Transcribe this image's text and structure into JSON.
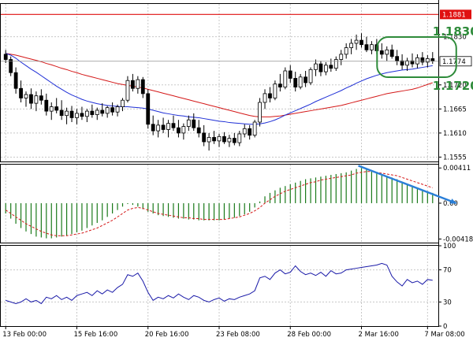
{
  "chart_data": [
    {
      "type": "candlestick",
      "panel": "price",
      "price_scale": {
        "ymin": 1.1545,
        "ymax": 1.1905,
        "ticks": [
          "1.1830",
          "1.1720",
          "1.1665",
          "1.1610",
          "1.1555"
        ],
        "tick_values": [
          1.183,
          1.172,
          1.1665,
          1.161,
          1.1555
        ]
      },
      "resistance_level": {
        "value": 1.1881,
        "label": "1.1881",
        "color": "#e01010"
      },
      "current_price": {
        "value": 1.1774,
        "label": "1.1774"
      },
      "annotations": [
        {
          "text": "1.1830",
          "color": "#2e8b3a"
        },
        {
          "text": "1.1720",
          "color": "#2e8b3a"
        }
      ],
      "highlight_box": {
        "color": "#2e8b3a",
        "from_candle": 74,
        "to_candle": 98
      },
      "candles": [
        {
          "o": 1.179,
          "h": 1.18,
          "l": 1.177,
          "c": 1.1778
        },
        {
          "o": 1.1778,
          "h": 1.1785,
          "l": 1.174,
          "c": 1.1748
        },
        {
          "o": 1.1748,
          "h": 1.176,
          "l": 1.17,
          "c": 1.1712
        },
        {
          "o": 1.1712,
          "h": 1.173,
          "l": 1.168,
          "c": 1.169
        },
        {
          "o": 1.169,
          "h": 1.1705,
          "l": 1.167,
          "c": 1.1698
        },
        {
          "o": 1.1698,
          "h": 1.1712,
          "l": 1.1665,
          "c": 1.1678
        },
        {
          "o": 1.1678,
          "h": 1.1705,
          "l": 1.166,
          "c": 1.1695
        },
        {
          "o": 1.1695,
          "h": 1.171,
          "l": 1.1675,
          "c": 1.1685
        },
        {
          "o": 1.1685,
          "h": 1.17,
          "l": 1.165,
          "c": 1.166
        },
        {
          "o": 1.166,
          "h": 1.168,
          "l": 1.164,
          "c": 1.167
        },
        {
          "o": 1.167,
          "h": 1.169,
          "l": 1.1655,
          "c": 1.1662
        },
        {
          "o": 1.1662,
          "h": 1.1685,
          "l": 1.164,
          "c": 1.165
        },
        {
          "o": 1.165,
          "h": 1.1668,
          "l": 1.163,
          "c": 1.166
        },
        {
          "o": 1.166,
          "h": 1.1672,
          "l": 1.1635,
          "c": 1.1645
        },
        {
          "o": 1.1645,
          "h": 1.1665,
          "l": 1.163,
          "c": 1.1655
        },
        {
          "o": 1.1655,
          "h": 1.167,
          "l": 1.164,
          "c": 1.1648
        },
        {
          "o": 1.1648,
          "h": 1.1665,
          "l": 1.1635,
          "c": 1.166
        },
        {
          "o": 1.166,
          "h": 1.1675,
          "l": 1.1645,
          "c": 1.1652
        },
        {
          "o": 1.1652,
          "h": 1.1668,
          "l": 1.164,
          "c": 1.1662
        },
        {
          "o": 1.1662,
          "h": 1.1678,
          "l": 1.1648,
          "c": 1.1655
        },
        {
          "o": 1.1655,
          "h": 1.1672,
          "l": 1.1645,
          "c": 1.1668
        },
        {
          "o": 1.1668,
          "h": 1.168,
          "l": 1.165,
          "c": 1.1658
        },
        {
          "o": 1.1658,
          "h": 1.1675,
          "l": 1.1648,
          "c": 1.167
        },
        {
          "o": 1.167,
          "h": 1.169,
          "l": 1.166,
          "c": 1.1685
        },
        {
          "o": 1.1685,
          "h": 1.174,
          "l": 1.168,
          "c": 1.173
        },
        {
          "o": 1.173,
          "h": 1.1745,
          "l": 1.1705,
          "c": 1.1712
        },
        {
          "o": 1.1712,
          "h": 1.174,
          "l": 1.17,
          "c": 1.1732
        },
        {
          "o": 1.1732,
          "h": 1.1738,
          "l": 1.169,
          "c": 1.17
        },
        {
          "o": 1.17,
          "h": 1.171,
          "l": 1.162,
          "c": 1.163
        },
        {
          "o": 1.163,
          "h": 1.165,
          "l": 1.1605,
          "c": 1.1615
        },
        {
          "o": 1.1615,
          "h": 1.164,
          "l": 1.16,
          "c": 1.1628
        },
        {
          "o": 1.1628,
          "h": 1.1645,
          "l": 1.161,
          "c": 1.1618
        },
        {
          "o": 1.1618,
          "h": 1.164,
          "l": 1.16,
          "c": 1.1632
        },
        {
          "o": 1.1632,
          "h": 1.165,
          "l": 1.1615,
          "c": 1.1622
        },
        {
          "o": 1.1622,
          "h": 1.164,
          "l": 1.16,
          "c": 1.161
        },
        {
          "o": 1.161,
          "h": 1.1632,
          "l": 1.1595,
          "c": 1.1625
        },
        {
          "o": 1.1625,
          "h": 1.165,
          "l": 1.1615,
          "c": 1.164
        },
        {
          "o": 1.164,
          "h": 1.1655,
          "l": 1.1615,
          "c": 1.1622
        },
        {
          "o": 1.1622,
          "h": 1.164,
          "l": 1.16,
          "c": 1.161
        },
        {
          "o": 1.161,
          "h": 1.1628,
          "l": 1.158,
          "c": 1.159
        },
        {
          "o": 1.159,
          "h": 1.161,
          "l": 1.157,
          "c": 1.16
        },
        {
          "o": 1.16,
          "h": 1.1615,
          "l": 1.1585,
          "c": 1.1592
        },
        {
          "o": 1.1592,
          "h": 1.1608,
          "l": 1.1578,
          "c": 1.1602
        },
        {
          "o": 1.1602,
          "h": 1.1612,
          "l": 1.1585,
          "c": 1.159
        },
        {
          "o": 1.159,
          "h": 1.1606,
          "l": 1.1578,
          "c": 1.1598
        },
        {
          "o": 1.1598,
          "h": 1.161,
          "l": 1.1582,
          "c": 1.1588
        },
        {
          "o": 1.1588,
          "h": 1.1615,
          "l": 1.158,
          "c": 1.1608
        },
        {
          "o": 1.1608,
          "h": 1.163,
          "l": 1.16,
          "c": 1.162
        },
        {
          "o": 1.162,
          "h": 1.1628,
          "l": 1.1595,
          "c": 1.1605
        },
        {
          "o": 1.1605,
          "h": 1.164,
          "l": 1.16,
          "c": 1.1635
        },
        {
          "o": 1.1635,
          "h": 1.169,
          "l": 1.1625,
          "c": 1.168
        },
        {
          "o": 1.168,
          "h": 1.171,
          "l": 1.1665,
          "c": 1.17
        },
        {
          "o": 1.17,
          "h": 1.1715,
          "l": 1.168,
          "c": 1.169
        },
        {
          "o": 1.169,
          "h": 1.173,
          "l": 1.1685,
          "c": 1.1722
        },
        {
          "o": 1.1722,
          "h": 1.1745,
          "l": 1.1705,
          "c": 1.1715
        },
        {
          "o": 1.1715,
          "h": 1.176,
          "l": 1.171,
          "c": 1.1752
        },
        {
          "o": 1.1752,
          "h": 1.1765,
          "l": 1.1725,
          "c": 1.1735
        },
        {
          "o": 1.1735,
          "h": 1.175,
          "l": 1.1705,
          "c": 1.1715
        },
        {
          "o": 1.1715,
          "h": 1.1745,
          "l": 1.171,
          "c": 1.1738
        },
        {
          "o": 1.1738,
          "h": 1.1752,
          "l": 1.1715,
          "c": 1.1725
        },
        {
          "o": 1.1725,
          "h": 1.176,
          "l": 1.172,
          "c": 1.1755
        },
        {
          "o": 1.1755,
          "h": 1.1778,
          "l": 1.174,
          "c": 1.1768
        },
        {
          "o": 1.1768,
          "h": 1.1775,
          "l": 1.174,
          "c": 1.175
        },
        {
          "o": 1.175,
          "h": 1.1772,
          "l": 1.1742,
          "c": 1.1765
        },
        {
          "o": 1.1765,
          "h": 1.178,
          "l": 1.175,
          "c": 1.1758
        },
        {
          "o": 1.1758,
          "h": 1.1785,
          "l": 1.1752,
          "c": 1.1778
        },
        {
          "o": 1.1778,
          "h": 1.18,
          "l": 1.1765,
          "c": 1.179
        },
        {
          "o": 1.179,
          "h": 1.1815,
          "l": 1.178,
          "c": 1.1805
        },
        {
          "o": 1.1805,
          "h": 1.1825,
          "l": 1.179,
          "c": 1.1815
        },
        {
          "o": 1.1815,
          "h": 1.1835,
          "l": 1.18,
          "c": 1.1822
        },
        {
          "o": 1.1822,
          "h": 1.1838,
          "l": 1.1805,
          "c": 1.1812
        },
        {
          "o": 1.1812,
          "h": 1.183,
          "l": 1.1795,
          "c": 1.18
        },
        {
          "o": 1.18,
          "h": 1.182,
          "l": 1.179,
          "c": 1.1812
        },
        {
          "o": 1.1812,
          "h": 1.1825,
          "l": 1.179,
          "c": 1.1798
        },
        {
          "o": 1.1798,
          "h": 1.1815,
          "l": 1.178,
          "c": 1.179
        },
        {
          "o": 1.179,
          "h": 1.1808,
          "l": 1.1775,
          "c": 1.18
        },
        {
          "o": 1.18,
          "h": 1.1812,
          "l": 1.178,
          "c": 1.1785
        },
        {
          "o": 1.1785,
          "h": 1.18,
          "l": 1.1765,
          "c": 1.1775
        },
        {
          "o": 1.1775,
          "h": 1.179,
          "l": 1.1755,
          "c": 1.1765
        },
        {
          "o": 1.1765,
          "h": 1.1782,
          "l": 1.1752,
          "c": 1.1775
        },
        {
          "o": 1.1775,
          "h": 1.1792,
          "l": 1.176,
          "c": 1.1768
        },
        {
          "o": 1.1768,
          "h": 1.179,
          "l": 1.1758,
          "c": 1.1782
        },
        {
          "o": 1.1782,
          "h": 1.1795,
          "l": 1.1765,
          "c": 1.1772
        },
        {
          "o": 1.1772,
          "h": 1.1788,
          "l": 1.176,
          "c": 1.178
        },
        {
          "o": 1.178,
          "h": 1.1795,
          "l": 1.1768,
          "c": 1.1775
        }
      ],
      "ma_fast": {
        "name": "",
        "color": "#1f2fd6",
        "values": [
          1.1792,
          1.1788,
          1.1781,
          1.1772,
          1.1764,
          1.1756,
          1.1749,
          1.1741,
          1.1733,
          1.1725,
          1.1717,
          1.171,
          1.1703,
          1.1697,
          1.1692,
          1.1687,
          1.1683,
          1.168,
          1.1677,
          1.1675,
          1.1673,
          1.1672,
          1.1671,
          1.167,
          1.167,
          1.1669,
          1.1668,
          1.1667,
          1.1665,
          1.1662,
          1.1659,
          1.1656,
          1.1654,
          1.1652,
          1.165,
          1.1649,
          1.1647,
          1.1646,
          1.1645,
          1.1643,
          1.1641,
          1.1639,
          1.1637,
          1.1636,
          1.1634,
          1.1633,
          1.1632,
          1.1631,
          1.163,
          1.163,
          1.1631,
          1.1633,
          1.1636,
          1.164,
          1.1645,
          1.1651,
          1.1656,
          1.1661,
          1.1666,
          1.1671,
          1.1676,
          1.1682,
          1.1687,
          1.1692,
          1.1697,
          1.1702,
          1.1707,
          1.1713,
          1.1718,
          1.1724,
          1.1729,
          1.1734,
          1.1738,
          1.1742,
          1.1745,
          1.1748,
          1.175,
          1.1752,
          1.1754,
          1.1755,
          1.1756,
          1.1758,
          1.176,
          1.1762,
          1.1764
        ]
      },
      "ma_slow": {
        "name": "",
        "color": "#d41818",
        "values": [
          1.1792,
          1.179,
          1.1788,
          1.1785,
          1.1782,
          1.1779,
          1.1776,
          1.1773,
          1.1769,
          1.1766,
          1.1762,
          1.1758,
          1.1755,
          1.1751,
          1.1748,
          1.1744,
          1.1741,
          1.1738,
          1.1735,
          1.1732,
          1.1729,
          1.1726,
          1.1723,
          1.1721,
          1.1719,
          1.1717,
          1.1715,
          1.1713,
          1.171,
          1.1707,
          1.1704,
          1.1701,
          1.1698,
          1.1695,
          1.1692,
          1.1689,
          1.1686,
          1.1683,
          1.168,
          1.1677,
          1.1674,
          1.1671,
          1.1668,
          1.1665,
          1.1662,
          1.1659,
          1.1656,
          1.1653,
          1.165,
          1.1648,
          1.1647,
          1.1647,
          1.1647,
          1.1648,
          1.1649,
          1.1651,
          1.1653,
          1.1655,
          1.1657,
          1.1659,
          1.1661,
          1.1663,
          1.1665,
          1.1667,
          1.1669,
          1.1671,
          1.1673,
          1.1676,
          1.1679,
          1.1682,
          1.1685,
          1.1688,
          1.1691,
          1.1694,
          1.1697,
          1.17,
          1.1702,
          1.1704,
          1.1706,
          1.1708,
          1.171,
          1.1713,
          1.1717,
          1.1721,
          1.1725
        ]
      }
    },
    {
      "type": "histogram",
      "panel": "oscillator",
      "ymin": -0.0046,
      "ymax": 0.0045,
      "ticks": [
        "0.00411",
        "0.00",
        "-0.00418"
      ],
      "tick_values": [
        0.00411,
        0.0,
        -0.00418
      ],
      "bar_color": "#1a7a1a",
      "signal_color": "#d41818",
      "arrow_color": "#2a7fd8",
      "values": [
        -0.0012,
        -0.0018,
        -0.0024,
        -0.0029,
        -0.0033,
        -0.0036,
        -0.0039,
        -0.004,
        -0.0041,
        -0.0041,
        -0.004,
        -0.0039,
        -0.0038,
        -0.0036,
        -0.0034,
        -0.0032,
        -0.0029,
        -0.0026,
        -0.0023,
        -0.002,
        -0.0016,
        -0.0012,
        -0.0008,
        -0.0004,
        -0.0001,
        -0.0002,
        -0.0004,
        -0.0007,
        -0.001,
        -0.0012,
        -0.0014,
        -0.0015,
        -0.0016,
        -0.0017,
        -0.0018,
        -0.0018,
        -0.0019,
        -0.0019,
        -0.002,
        -0.002,
        -0.002,
        -0.002,
        -0.002,
        -0.0019,
        -0.0018,
        -0.0017,
        -0.0015,
        -0.0013,
        -0.001,
        -0.0005,
        0.0002,
        0.0008,
        0.0012,
        0.0015,
        0.0018,
        0.002,
        0.0022,
        0.0024,
        0.0026,
        0.0028,
        0.0029,
        0.003,
        0.0031,
        0.0032,
        0.0033,
        0.0034,
        0.0035,
        0.0036,
        0.0038,
        0.004,
        0.0041,
        0.004,
        0.0038,
        0.0036,
        0.0034,
        0.0032,
        0.003,
        0.0028,
        0.0025,
        0.0022,
        0.002,
        0.0018,
        0.0016,
        0.0014,
        0.0012
      ],
      "signal": [
        -0.0008,
        -0.0012,
        -0.0016,
        -0.002,
        -0.0024,
        -0.0027,
        -0.003,
        -0.0033,
        -0.0035,
        -0.0037,
        -0.0038,
        -0.0038,
        -0.0038,
        -0.0037,
        -0.0036,
        -0.0035,
        -0.0033,
        -0.0031,
        -0.0029,
        -0.0026,
        -0.0023,
        -0.002,
        -0.0016,
        -0.0012,
        -0.0008,
        -0.0006,
        -0.0005,
        -0.0006,
        -0.0008,
        -0.001,
        -0.0012,
        -0.0013,
        -0.0014,
        -0.0015,
        -0.0016,
        -0.0017,
        -0.0017,
        -0.0018,
        -0.0018,
        -0.0019,
        -0.0019,
        -0.0019,
        -0.0019,
        -0.0019,
        -0.0018,
        -0.0017,
        -0.0016,
        -0.0014,
        -0.0012,
        -0.0009,
        -0.0005,
        0.0,
        0.0004,
        0.0008,
        0.0011,
        0.0014,
        0.0016,
        0.0018,
        0.002,
        0.0022,
        0.0024,
        0.0025,
        0.0027,
        0.0028,
        0.0029,
        0.003,
        0.0031,
        0.0032,
        0.0033,
        0.0035,
        0.0036,
        0.0037,
        0.0037,
        0.0036,
        0.0035,
        0.0034,
        0.0033,
        0.0032,
        0.003,
        0.0028,
        0.0026,
        0.0024,
        0.0022,
        0.002,
        0.0018
      ]
    },
    {
      "type": "line",
      "panel": "rsi",
      "ymin": 0,
      "ymax": 100,
      "ticks": [
        "100",
        "70",
        "30",
        "0"
      ],
      "tick_values": [
        100,
        70,
        30,
        0
      ],
      "line_color": "#1a1aa8",
      "values": [
        32,
        30,
        28,
        30,
        34,
        30,
        32,
        28,
        36,
        34,
        38,
        33,
        36,
        32,
        38,
        40,
        42,
        38,
        44,
        40,
        45,
        42,
        48,
        52,
        64,
        62,
        66,
        56,
        42,
        32,
        36,
        34,
        38,
        35,
        40,
        36,
        33,
        38,
        36,
        32,
        30,
        33,
        35,
        31,
        34,
        33,
        36,
        38,
        40,
        44,
        60,
        62,
        58,
        66,
        70,
        65,
        67,
        75,
        68,
        64,
        66,
        63,
        67,
        62,
        69,
        65,
        66,
        70,
        71,
        72,
        73,
        74,
        75,
        76,
        78,
        76,
        62,
        55,
        50,
        58,
        54,
        56,
        52,
        58,
        57
      ]
    }
  ],
  "time_axis": {
    "labels": [
      "13 Feb 00:00",
      "15 Feb 16:00",
      "20 Feb 16:00",
      "23 Feb 08:00",
      "28 Feb 00:00",
      "2 Mar 16:00",
      "7 Mar 08:00"
    ],
    "label_candle_index": [
      0,
      14,
      28,
      42,
      56,
      70,
      83
    ]
  },
  "colors": {
    "background": "#ffffff",
    "grid": "#c8c8c8",
    "frame": "#000000",
    "candle_up": "#ffffff",
    "candle_down": "#000000",
    "current_price_bg": "#ffffff"
  }
}
